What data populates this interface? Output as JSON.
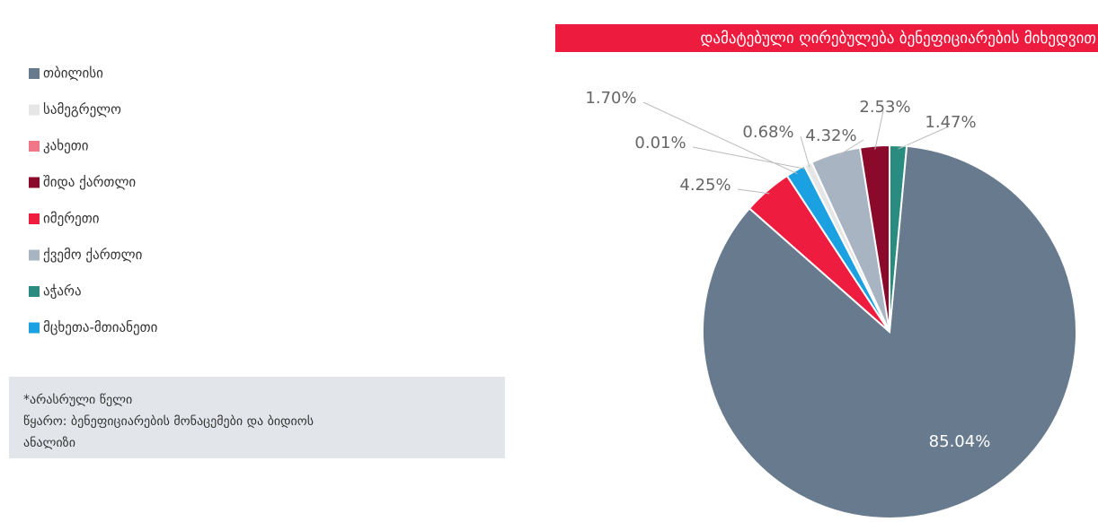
{
  "chart_data": {
    "type": "pie",
    "title": "დამატებული ღირებულება ბენეფიციარების მიხედვით",
    "categories": [
      "თბილისი",
      "სამეგრელო",
      "კახეთი",
      "შიდა ქართლი",
      "იმერეთი",
      "ქვემო ქართლი",
      "აჭარა",
      "მცხეთა-მთიანეთი"
    ],
    "values": [
      85.04,
      0.68,
      0.01,
      2.53,
      4.25,
      4.32,
      1.47,
      1.7
    ],
    "value_labels": [
      "85.04%",
      "0.68%",
      "0.01%",
      "2.53%",
      "4.25%",
      "4.32%",
      "1.47%",
      "1.70%"
    ],
    "colors": [
      "#687b8e",
      "#e6e6e6",
      "#f07688",
      "#8b0a2c",
      "#ee1c3e",
      "#a9b4c3",
      "#2a8c80",
      "#1ba1e2"
    ],
    "legend": "left"
  },
  "notes": [
    "*არასრული წელი",
    "წყარო: ბენეფიციარების მონაცემები და ბიდიოს",
    "ანალიზი"
  ]
}
